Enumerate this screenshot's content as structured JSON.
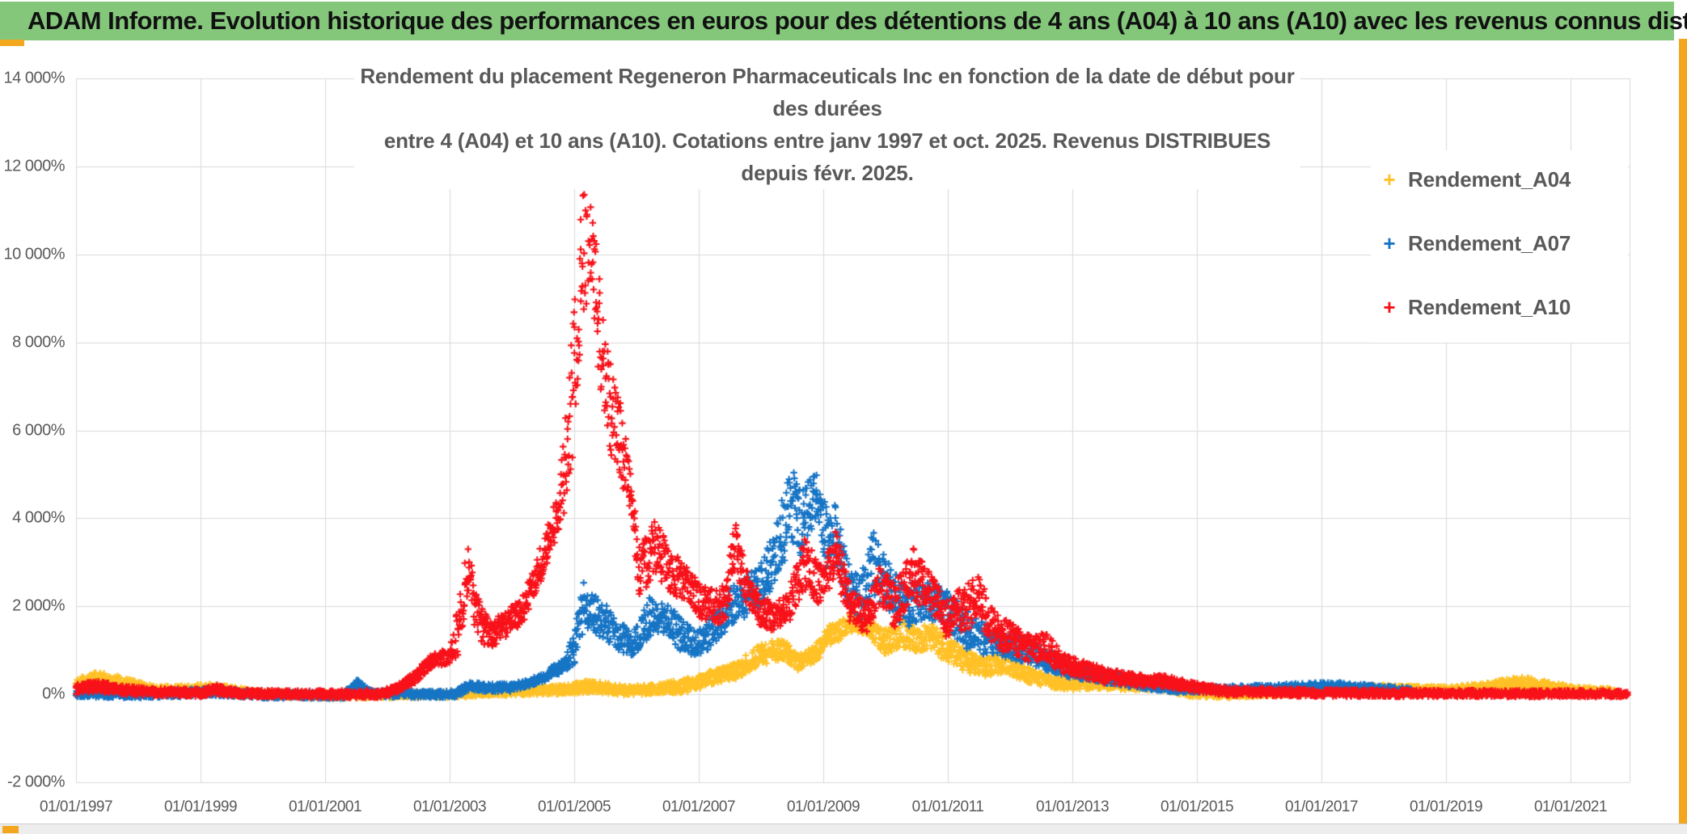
{
  "header": {
    "title": "ADAM Informe. Evolution historique des performances en euros pour des détentions de 4 ans (A04) à 10 ans (A10) avec les revenus connus distribués",
    "bg_color": "#84C77B",
    "accent_gold": "#F2A71E"
  },
  "chart": {
    "title_line1": "Rendement du placement Regeneron Pharmaceuticals Inc en fonction de la date de début pour des durées",
    "title_line2": "entre 4 (A04) et 10 ans (A10). Cotations entre janv 1997 et oct. 2025. Revenus DISTRIBUES depuis févr. 2025.",
    "text_color": "#595959",
    "gridline_color": "#D9D9D9",
    "plot_bg": "#FFFFFF"
  },
  "chart_data": {
    "type": "scatter",
    "title": "Rendement du placement Regeneron Pharmaceuticals Inc en fonction de la date de début pour des durées entre 4 (A04) et 10 ans (A10). Cotations entre janv 1997 et oct. 2025. Revenus DISTRIBUES depuis févr. 2025.",
    "xlabel": "",
    "ylabel": "",
    "grid": true,
    "marker": "plus",
    "x_axis": {
      "range_years": [
        1997.0,
        2021.95
      ],
      "tick_years": [
        1997,
        1999,
        2001,
        2003,
        2005,
        2007,
        2009,
        2011,
        2013,
        2015,
        2017,
        2019,
        2021
      ],
      "tick_labels": [
        "01/01/1997",
        "01/01/1999",
        "01/01/2001",
        "01/01/2003",
        "01/01/2005",
        "01/01/2007",
        "01/01/2009",
        "01/01/2011",
        "01/01/2013",
        "01/01/2015",
        "01/01/2017",
        "01/01/2019",
        "01/01/2021"
      ]
    },
    "y_axis": {
      "range_pct": [
        -2000,
        14100
      ],
      "tick_values": [
        14000,
        12000,
        10000,
        8000,
        6000,
        4000,
        2000,
        0,
        -2000
      ],
      "tick_labels": [
        "14 000%",
        "12 000%",
        "10 000%",
        "8 000%",
        "6 000%",
        "4 000%",
        "2 000%",
        "0%",
        "-2 000%"
      ]
    },
    "legend": {
      "position": "right",
      "items": [
        {
          "label": "Rendement_A04",
          "color": "#FFC125",
          "marker": "+"
        },
        {
          "label": "Rendement_A07",
          "color": "#1674C5",
          "marker": "+"
        },
        {
          "label": "Rendement_A10",
          "color": "#F81119",
          "marker": "+"
        }
      ]
    },
    "note": "Dense weekly scatter; series values in % given as envelope keyframes [decimal_year, low_pct, high_pct] read off the plot. Points are synthesized uniformly inside the envelope.",
    "series": [
      {
        "name": "Rendement_A04",
        "color": "#FFC125",
        "seed": 11,
        "envelope_keyframes": [
          [
            1997.0,
            100,
            360
          ],
          [
            1997.35,
            180,
            510
          ],
          [
            1997.7,
            100,
            400
          ],
          [
            1998.3,
            -20,
            180
          ],
          [
            1999.2,
            0,
            230
          ],
          [
            2000.0,
            -70,
            70
          ],
          [
            2001.2,
            -100,
            30
          ],
          [
            2002.2,
            -80,
            50
          ],
          [
            2003.2,
            -70,
            60
          ],
          [
            2003.6,
            -40,
            120
          ],
          [
            2004.2,
            -20,
            160
          ],
          [
            2004.8,
            0,
            200
          ],
          [
            2005.3,
            40,
            330
          ],
          [
            2005.8,
            -20,
            180
          ],
          [
            2006.3,
            0,
            220
          ],
          [
            2006.8,
            40,
            350
          ],
          [
            2007.2,
            220,
            530
          ],
          [
            2007.6,
            350,
            720
          ],
          [
            2008.0,
            660,
            1140
          ],
          [
            2008.35,
            800,
            1270
          ],
          [
            2008.6,
            530,
            900
          ],
          [
            2008.85,
            700,
            1080
          ],
          [
            2009.1,
            1080,
            1580
          ],
          [
            2009.5,
            1450,
            1880
          ],
          [
            2009.75,
            1270,
            1690
          ],
          [
            2010.0,
            900,
            1500
          ],
          [
            2010.25,
            1100,
            1750
          ],
          [
            2010.5,
            900,
            1500
          ],
          [
            2010.7,
            1000,
            1650
          ],
          [
            2011.0,
            700,
            1300
          ],
          [
            2011.3,
            500,
            1000
          ],
          [
            2011.6,
            400,
            800
          ],
          [
            2011.9,
            500,
            1000
          ],
          [
            2012.2,
            300,
            650
          ],
          [
            2012.6,
            150,
            450
          ],
          [
            2013.0,
            100,
            350
          ],
          [
            2013.5,
            120,
            400
          ],
          [
            2014.0,
            80,
            300
          ],
          [
            2014.4,
            100,
            380
          ],
          [
            2014.9,
            -60,
            120
          ],
          [
            2015.5,
            -80,
            60
          ],
          [
            2016.2,
            -40,
            100
          ],
          [
            2017.0,
            0,
            160
          ],
          [
            2017.7,
            40,
            220
          ],
          [
            2018.4,
            50,
            190
          ],
          [
            2019.0,
            30,
            170
          ],
          [
            2019.6,
            60,
            250
          ],
          [
            2020.2,
            120,
            400
          ],
          [
            2020.5,
            90,
            330
          ],
          [
            2021.0,
            10,
            180
          ],
          [
            2021.7,
            -40,
            120
          ]
        ]
      },
      {
        "name": "Rendement_A07",
        "color": "#1674C5",
        "seed": 22,
        "envelope_keyframes": [
          [
            1997.0,
            -60,
            90
          ],
          [
            1998.0,
            -90,
            60
          ],
          [
            1999.2,
            -40,
            140
          ],
          [
            2000.0,
            -90,
            50
          ],
          [
            2001.3,
            -100,
            40
          ],
          [
            2001.5,
            30,
            350
          ],
          [
            2001.75,
            -60,
            80
          ],
          [
            2002.5,
            -80,
            70
          ],
          [
            2003.1,
            -80,
            80
          ],
          [
            2003.3,
            80,
            290
          ],
          [
            2003.6,
            60,
            230
          ],
          [
            2004.0,
            60,
            250
          ],
          [
            2004.2,
            150,
            320
          ],
          [
            2004.45,
            250,
            430
          ],
          [
            2004.65,
            380,
            640
          ],
          [
            2004.85,
            520,
            800
          ],
          [
            2005.0,
            650,
            1450
          ],
          [
            2005.15,
            1450,
            2560
          ],
          [
            2005.3,
            1400,
            2300
          ],
          [
            2005.5,
            1250,
            2060
          ],
          [
            2005.7,
            1000,
            1700
          ],
          [
            2005.95,
            850,
            1400
          ],
          [
            2006.2,
            1300,
            2200
          ],
          [
            2006.45,
            1400,
            2100
          ],
          [
            2006.7,
            1000,
            1800
          ],
          [
            2006.95,
            850,
            1400
          ],
          [
            2007.2,
            1050,
            1750
          ],
          [
            2007.5,
            1500,
            2400
          ],
          [
            2007.8,
            1800,
            2700
          ],
          [
            2008.0,
            1950,
            2980
          ],
          [
            2008.25,
            2600,
            3900
          ],
          [
            2008.47,
            3300,
            5310
          ],
          [
            2008.62,
            2980,
            4650
          ],
          [
            2008.9,
            4100,
            5050
          ],
          [
            2009.05,
            2800,
            4300
          ],
          [
            2009.2,
            2800,
            4300
          ],
          [
            2009.4,
            2000,
            3000
          ],
          [
            2009.6,
            1700,
            2700
          ],
          [
            2009.8,
            2200,
            3715
          ],
          [
            2010.0,
            2000,
            3100
          ],
          [
            2010.3,
            1500,
            2500
          ],
          [
            2010.6,
            1700,
            2600
          ],
          [
            2010.95,
            1600,
            2400
          ],
          [
            2011.3,
            1000,
            1900
          ],
          [
            2011.6,
            900,
            1600
          ],
          [
            2012.0,
            800,
            1400
          ],
          [
            2012.3,
            700,
            1300
          ],
          [
            2012.6,
            500,
            1000
          ],
          [
            2013.0,
            350,
            700
          ],
          [
            2013.5,
            250,
            550
          ],
          [
            2014.0,
            150,
            400
          ],
          [
            2014.6,
            40,
            180
          ],
          [
            2015.2,
            30,
            170
          ],
          [
            2015.8,
            50,
            200
          ],
          [
            2016.4,
            60,
            230
          ],
          [
            2017.2,
            90,
            280
          ],
          [
            2017.7,
            50,
            220
          ],
          [
            2018.45,
            0,
            150
          ]
        ]
      },
      {
        "name": "Rendement_A10",
        "color": "#F81119",
        "seed": 33,
        "envelope_keyframes": [
          [
            1997.0,
            0,
            230
          ],
          [
            1997.35,
            60,
            300
          ],
          [
            1997.7,
            0,
            200
          ],
          [
            1998.2,
            -40,
            140
          ],
          [
            1999.0,
            -60,
            120
          ],
          [
            1999.25,
            0,
            220
          ],
          [
            1999.6,
            -60,
            100
          ],
          [
            2000.5,
            -80,
            80
          ],
          [
            2001.9,
            -80,
            90
          ],
          [
            2002.15,
            30,
            200
          ],
          [
            2002.45,
            250,
            520
          ],
          [
            2002.7,
            600,
            900
          ],
          [
            2003.0,
            700,
            1050
          ],
          [
            2003.15,
            900,
            2100
          ],
          [
            2003.3,
            2300,
            3530
          ],
          [
            2003.45,
            1100,
            2200
          ],
          [
            2003.65,
            1050,
            1650
          ],
          [
            2003.9,
            1300,
            1900
          ],
          [
            2004.15,
            1550,
            2150
          ],
          [
            2004.4,
            2300,
            3100
          ],
          [
            2004.55,
            2950,
            3750
          ],
          [
            2004.7,
            3300,
            4400
          ],
          [
            2004.85,
            4200,
            6200
          ],
          [
            2005.0,
            5500,
            8800
          ],
          [
            2005.15,
            8000,
            11700
          ],
          [
            2005.25,
            9300,
            11900
          ],
          [
            2005.45,
            6500,
            8800
          ],
          [
            2005.6,
            5200,
            7300
          ],
          [
            2005.75,
            4800,
            6600
          ],
          [
            2005.9,
            4100,
            5100
          ],
          [
            2006.05,
            2200,
            3300
          ],
          [
            2006.3,
            2700,
            3970
          ],
          [
            2006.55,
            2300,
            3300
          ],
          [
            2006.8,
            2100,
            2900
          ],
          [
            2007.05,
            1700,
            2500
          ],
          [
            2007.3,
            1600,
            2350
          ],
          [
            2007.45,
            1700,
            2600
          ],
          [
            2007.58,
            2900,
            4080
          ],
          [
            2007.75,
            2100,
            2880
          ],
          [
            2008.0,
            1500,
            2200
          ],
          [
            2008.2,
            1450,
            2130
          ],
          [
            2008.45,
            1600,
            2400
          ],
          [
            2008.7,
            2400,
            3600
          ],
          [
            2008.95,
            2000,
            2920
          ],
          [
            2009.2,
            2700,
            3790
          ],
          [
            2009.45,
            1500,
            2400
          ],
          [
            2009.7,
            1400,
            2100
          ],
          [
            2009.9,
            2000,
            2900
          ],
          [
            2010.15,
            1500,
            2500
          ],
          [
            2010.45,
            2100,
            3330
          ],
          [
            2010.7,
            1900,
            2800
          ],
          [
            2010.95,
            1300,
            2200
          ],
          [
            2011.2,
            1400,
            2400
          ],
          [
            2011.5,
            1600,
            2700
          ],
          [
            2011.8,
            1000,
            1800
          ],
          [
            2012.1,
            900,
            1600
          ],
          [
            2012.35,
            700,
            1300
          ],
          [
            2012.55,
            800,
            1500
          ],
          [
            2012.8,
            500,
            1000
          ],
          [
            2013.1,
            400,
            800
          ],
          [
            2013.5,
            250,
            600
          ],
          [
            2014.0,
            200,
            450
          ],
          [
            2014.5,
            150,
            420
          ],
          [
            2015.0,
            50,
            250
          ],
          [
            2015.5,
            -30,
            150
          ],
          [
            2016.5,
            -50,
            120
          ],
          [
            2018.0,
            -60,
            100
          ],
          [
            2020.0,
            -60,
            90
          ],
          [
            2021.92,
            -60,
            80
          ]
        ]
      }
    ]
  },
  "scrollbar": {
    "thumb_color": "#F2A71E",
    "track_color": "#EDEDED"
  }
}
